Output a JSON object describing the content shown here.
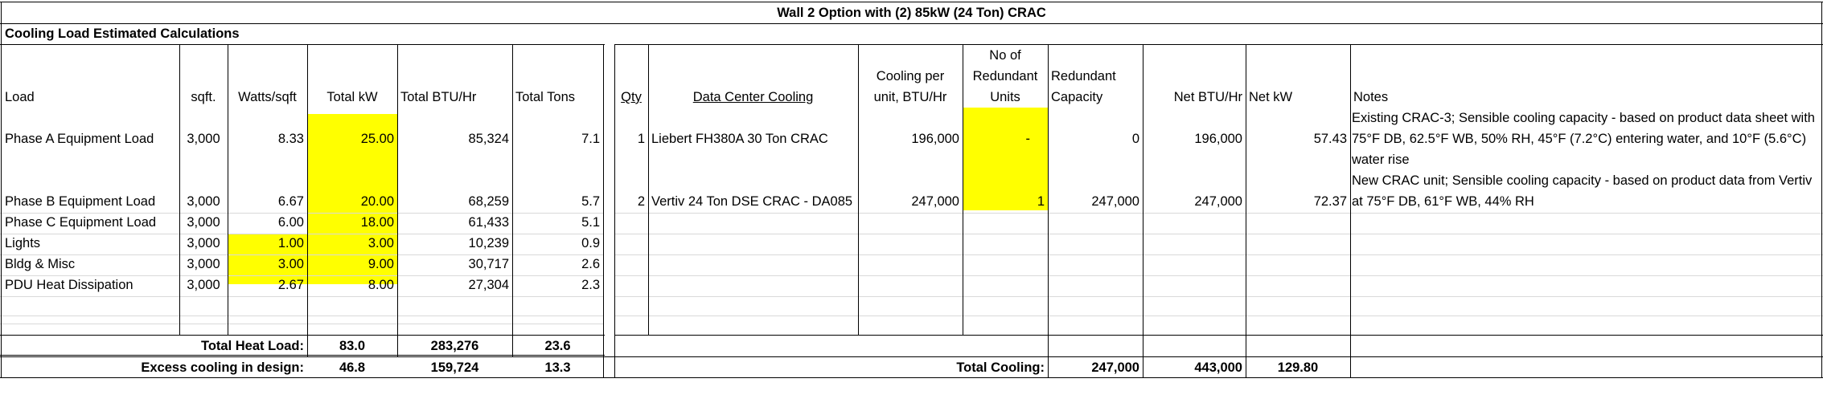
{
  "title": "Wall 2 Option with (2) 85kW (24 Ton) CRAC",
  "section_title": "Cooling Load Estimated Calculations",
  "load_headers": {
    "load": "Load",
    "sqft": "sqft.",
    "watts_sqft": "Watts/sqft",
    "total_kw": "Total kW",
    "total_btu": "Total BTU/Hr",
    "total_tons": "Total Tons"
  },
  "load_rows": [
    {
      "load": "Phase A Equipment Load",
      "sqft": "3,000",
      "watts": "8.33",
      "kw": "25.00",
      "btu": "85,324",
      "tons": "7.1"
    },
    {
      "load": "Phase B Equipment Load",
      "sqft": "3,000",
      "watts": "6.67",
      "kw": "20.00",
      "btu": "68,259",
      "tons": "5.7"
    },
    {
      "load": "Phase C Equipment Load",
      "sqft": "3,000",
      "watts": "6.00",
      "kw": "18.00",
      "btu": "61,433",
      "tons": "5.1"
    },
    {
      "load": "Lights",
      "sqft": "3,000",
      "watts": "1.00",
      "kw": "3.00",
      "btu": "10,239",
      "tons": "0.9"
    },
    {
      "load": "Bldg & Misc",
      "sqft": "3,000",
      "watts": "3.00",
      "kw": "9.00",
      "btu": "30,717",
      "tons": "2.6"
    },
    {
      "load": "PDU Heat Dissipation",
      "sqft": "3,000",
      "watts": "2.67",
      "kw": "8.00",
      "btu": "27,304",
      "tons": "2.3"
    }
  ],
  "total_heat": {
    "label": "Total Heat Load:",
    "kw": "83.0",
    "btu": "283,276",
    "tons": "23.6"
  },
  "excess": {
    "label": "Excess cooling in design:",
    "kw": "46.8",
    "btu": "159,724",
    "tons": "13.3"
  },
  "cooling_headers": {
    "qty": "Qty",
    "dc_cooling": "Data Center Cooling",
    "per_unit_1": "Cooling per",
    "per_unit_2": "unit, BTU/Hr",
    "redundant_units_1": "No of",
    "redundant_units_2": "Redundant",
    "redundant_units_3": "Units",
    "redundant_cap_1": "Redundant",
    "redundant_cap_2": "Capacity",
    "net_btu": "Net BTU/Hr",
    "net_kw": "Net kW",
    "notes": "Notes"
  },
  "cooling_rows": [
    {
      "qty": "1",
      "name": "Liebert FH380A 30 Ton CRAC",
      "per_unit": "196,000",
      "redundant_units": "-",
      "redundant_cap": "0",
      "net_btu": "196,000",
      "net_kw": "57.43",
      "notes": " Existing CRAC-3; Sensible cooling capacity - based on product data sheet with 75°F DB, 62.5°F WB, 50% RH, 45°F (7.2°C) entering water, and 10°F (5.6°C) water rise"
    },
    {
      "qty": "2",
      "name": "Vertiv 24 Ton DSE CRAC - DA085",
      "per_unit": "247,000",
      "redundant_units": "1",
      "redundant_cap": "247,000",
      "net_btu": "247,000",
      "net_kw": "72.37",
      "notes": " New CRAC unit; Sensible cooling capacity - based on product data from Vertiv at 75°F DB, 61°F WB, 44% RH"
    }
  ],
  "total_cooling": {
    "label": "Total Cooling:",
    "redundant_cap": "247,000",
    "net_btu": "443,000",
    "net_kw": "129.80"
  },
  "colors": {
    "highlight": "#ffff00",
    "border": "#000000",
    "gridline": "#d9d9d9"
  }
}
